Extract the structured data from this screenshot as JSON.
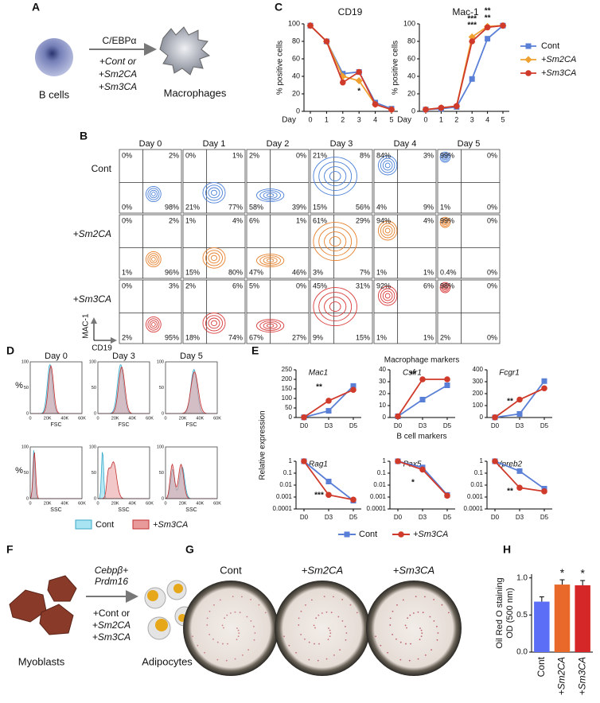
{
  "panel_labels": [
    "A",
    "B",
    "C",
    "D",
    "E",
    "F",
    "G",
    "H"
  ],
  "panel_a": {
    "input": "B cells",
    "factor": "C/EBPα",
    "conditions": [
      "+Cont or",
      "+Sm2CA",
      "+Sm3CA"
    ],
    "condition_colors": [
      "#3f74e0",
      "#e8701a",
      "#d02020"
    ],
    "output": "Macrophages"
  },
  "panel_b": {
    "days": [
      "Day 0",
      "Day 1",
      "Day 2",
      "Day 3",
      "Day 4",
      "Day 5"
    ],
    "y_axis": "MAC-1",
    "x_axis": "CD19",
    "rows": [
      {
        "label": "Cont",
        "color": "#4a7fd8",
        "quadrants": [
          [
            "0%",
            "2%",
            "0%",
            "98%"
          ],
          [
            "0%",
            "1%",
            "21%",
            "77%"
          ],
          [
            "2%",
            "0%",
            "58%",
            "39%"
          ],
          [
            "21%",
            "8%",
            "15%",
            "56%"
          ],
          [
            "84%",
            "3%",
            "4%",
            "9%"
          ],
          [
            "99%",
            "0%",
            "1%",
            "0%"
          ]
        ]
      },
      {
        "label": "+Sm2CA",
        "color": "#e8802a",
        "quadrants": [
          [
            "0%",
            "2%",
            "1%",
            "96%"
          ],
          [
            "1%",
            "4%",
            "15%",
            "80%"
          ],
          [
            "6%",
            "1%",
            "47%",
            "46%"
          ],
          [
            "61%",
            "29%",
            "3%",
            "7%"
          ],
          [
            "94%",
            "4%",
            "1%",
            "1%"
          ],
          [
            "99%",
            "0%",
            "0.4%",
            "0%"
          ]
        ]
      },
      {
        "label": "+Sm3CA",
        "color": "#d93a3a",
        "quadrants": [
          [
            "0%",
            "3%",
            "2%",
            "95%"
          ],
          [
            "2%",
            "6%",
            "18%",
            "74%"
          ],
          [
            "5%",
            "0%",
            "67%",
            "27%"
          ],
          [
            "45%",
            "31%",
            "9%",
            "15%"
          ],
          [
            "92%",
            "6%",
            "1%",
            "1%"
          ],
          [
            "98%",
            "0%",
            "2%",
            "0%"
          ]
        ]
      }
    ]
  },
  "panel_d": {
    "days": [
      "Day 0",
      "Day 3",
      "Day 5"
    ],
    "y_label": "%",
    "row_labels": [
      "FSC",
      "SSC"
    ],
    "x_ticks": [
      "0",
      "20K",
      "40K",
      "60K"
    ],
    "y_ticks": [
      "0",
      "50",
      "100"
    ],
    "legend": [
      {
        "name": "Cont",
        "color": "#a8e4f2"
      },
      {
        "name": "+Sm3CA",
        "color": "#e89a9a"
      }
    ]
  },
  "panel_e": {
    "top_header": "Macrophage markers",
    "bottom_header": "B cell markers",
    "y_label": "Relative expression",
    "legend": [
      {
        "name": "Cont",
        "color": "#5a7fd6"
      },
      {
        "name": "+Sm3CA",
        "color": "#d03a2a"
      }
    ]
  },
  "panel_f": {
    "input": "Myoblasts",
    "factor_lines": [
      "Cebpβ+",
      "Prdm16"
    ],
    "conditions": [
      "+Cont or",
      "+Sm2CA",
      "+Sm3CA"
    ],
    "condition_colors": [
      "#3f74e0",
      "#e8701a",
      "#d02020"
    ],
    "output": "Adipocytes"
  },
  "panel_g": {
    "wells": [
      "Cont",
      "+Sm2CA",
      "+Sm3CA"
    ]
  },
  "chart_data": [
    {
      "type": "line",
      "title": "CD19",
      "xlabel": "Day",
      "ylabel": "% positive cells",
      "categories": [
        "0",
        "1",
        "2",
        "3",
        "4",
        "5"
      ],
      "ylim": [
        0,
        100
      ],
      "yticks": [
        0,
        20,
        40,
        60,
        80,
        100
      ],
      "series": [
        {
          "color": "#5a7fd6",
          "marker": "square",
          "values": [
            98,
            80,
            43,
            45,
            10,
            3
          ]
        },
        {
          "color": "#f0a030",
          "marker": "diamond",
          "values": [
            98,
            80,
            40,
            35,
            8,
            2
          ]
        },
        {
          "color": "#d03a2a",
          "marker": "circle",
          "values": [
            98,
            80,
            33,
            45,
            8,
            2
          ]
        }
      ],
      "annotations": [
        {
          "text": "*",
          "color": "#f0a030"
        }
      ]
    },
    {
      "type": "line",
      "title": "Mac-1",
      "xlabel": "Day",
      "ylabel": "% positive cells",
      "categories": [
        "0",
        "1",
        "2",
        "3",
        "4",
        "5"
      ],
      "ylim": [
        0,
        100
      ],
      "yticks": [
        0,
        20,
        40,
        60,
        80,
        100
      ],
      "legend": true,
      "series": [
        {
          "name": "Cont",
          "color": "#5a7fd6",
          "marker": "square",
          "values": [
            2,
            3,
            5,
            37,
            83,
            98
          ]
        },
        {
          "name": "+Sm2CA",
          "color": "#f0a030",
          "marker": "diamond",
          "values": [
            2,
            4,
            6,
            85,
            97,
            98
          ]
        },
        {
          "name": "+Sm3CA",
          "color": "#d03a2a",
          "marker": "circle",
          "values": [
            2,
            4,
            6,
            80,
            96,
            98
          ]
        }
      ],
      "annotations": [
        {
          "text": "***",
          "color": "#f0a030"
        },
        {
          "text": "***",
          "color": "#d03a2a"
        },
        {
          "text": "**",
          "color": "#f0a030"
        },
        {
          "text": "**",
          "color": "#d03a2a"
        }
      ]
    },
    {
      "type": "line",
      "title": "Mac1",
      "categories": [
        "D0",
        "D3",
        "D5"
      ],
      "ylim": [
        0,
        250
      ],
      "yticks": [
        0,
        50,
        100,
        150,
        200,
        250
      ],
      "series": [
        {
          "color": "#5a7fd6",
          "marker": "square",
          "values": [
            1,
            35,
            165
          ]
        },
        {
          "color": "#d03a2a",
          "marker": "circle",
          "values": [
            1,
            88,
            145
          ]
        }
      ],
      "annotations": [
        {
          "text": "**",
          "color": "#000000"
        }
      ]
    },
    {
      "type": "line",
      "title": "Csfr1",
      "categories": [
        "D0",
        "D3",
        "D5"
      ],
      "ylim": [
        0,
        40
      ],
      "yticks": [
        0,
        10,
        20,
        30,
        40
      ],
      "series": [
        {
          "color": "#5a7fd6",
          "marker": "square",
          "values": [
            1,
            15,
            27
          ]
        },
        {
          "color": "#d03a2a",
          "marker": "circle",
          "values": [
            1,
            32,
            32
          ]
        }
      ],
      "annotations": [
        {
          "text": "**",
          "color": "#000000"
        }
      ]
    },
    {
      "type": "line",
      "title": "Fcgr1",
      "categories": [
        "D0",
        "D3",
        "D5"
      ],
      "ylim": [
        0,
        400
      ],
      "yticks": [
        0,
        100,
        200,
        300,
        400
      ],
      "series": [
        {
          "color": "#5a7fd6",
          "marker": "square",
          "values": [
            1,
            30,
            305
          ]
        },
        {
          "color": "#d03a2a",
          "marker": "circle",
          "values": [
            1,
            150,
            245
          ]
        }
      ],
      "annotations": [
        {
          "text": "**",
          "color": "#000000"
        }
      ]
    },
    {
      "type": "line",
      "title": "Rag1",
      "log_y": true,
      "categories": [
        "D0",
        "D3",
        "D5"
      ],
      "ylim": [
        0.0001,
        1
      ],
      "yticks": [
        1,
        0.1,
        0.01,
        0.001,
        0.0001
      ],
      "series": [
        {
          "color": "#5a7fd6",
          "marker": "square",
          "values": [
            1,
            0.02,
            0.0005
          ]
        },
        {
          "color": "#d03a2a",
          "marker": "circle",
          "values": [
            1,
            0.0015,
            0.0006
          ]
        }
      ],
      "annotations": [
        {
          "text": "***",
          "color": "#000000"
        }
      ]
    },
    {
      "type": "line",
      "title": "Pax5",
      "log_y": true,
      "categories": [
        "D0",
        "D3",
        "D5"
      ],
      "ylim": [
        0.0001,
        1
      ],
      "yticks": [
        1,
        0.1,
        0.01,
        0.001,
        0.0001
      ],
      "series": [
        {
          "color": "#5a7fd6",
          "marker": "square",
          "values": [
            1,
            0.3,
            0.0015
          ]
        },
        {
          "color": "#d03a2a",
          "marker": "circle",
          "values": [
            1,
            0.2,
            0.0013
          ]
        }
      ],
      "annotations": [
        {
          "text": "*",
          "color": "#000000"
        }
      ]
    },
    {
      "type": "line",
      "title": "Vpreb2",
      "log_y": true,
      "categories": [
        "D0",
        "D3",
        "D5"
      ],
      "ylim": [
        0.0001,
        1
      ],
      "yticks": [
        1,
        0.1,
        0.01,
        0.001,
        0.0001
      ],
      "series": [
        {
          "color": "#5a7fd6",
          "marker": "square",
          "values": [
            1,
            0.15,
            0.005
          ]
        },
        {
          "color": "#d03a2a",
          "marker": "circle",
          "values": [
            1,
            0.006,
            0.003
          ]
        }
      ],
      "annotations": [
        {
          "text": "**",
          "color": "#000000"
        }
      ]
    },
    {
      "type": "bar",
      "ylabel": [
        "Oil Red O staining",
        "OD (500 nm)"
      ],
      "categories": [
        "Cont",
        "+Sm2CA",
        "+Sm3CA"
      ],
      "values": [
        0.68,
        0.91,
        0.9
      ],
      "colors": [
        "#5b6ef5",
        "#e8692a",
        "#d62728"
      ],
      "ylim": [
        0,
        1.05
      ],
      "yticks": [
        {
          "value": 0,
          "label": "0.0"
        },
        {
          "value": 0.5,
          "label": "0.5"
        },
        {
          "value": 1,
          "label": "1.0"
        }
      ],
      "annotations": [
        {
          "text": "*",
          "color": "#000000"
        },
        {
          "text": "*",
          "color": "#000000"
        }
      ]
    }
  ]
}
